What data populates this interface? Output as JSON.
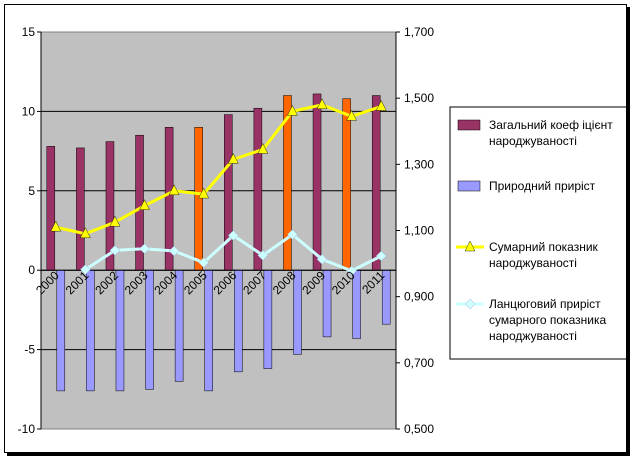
{
  "chart_data": {
    "type": "bar",
    "x": [
      "2000",
      "2001",
      "2002",
      "2003",
      "2004",
      "2005",
      "2006",
      "2007",
      "2008",
      "2009",
      "2010",
      "2011"
    ],
    "left_axis": {
      "ylim": [
        -10,
        15
      ],
      "ticks": [
        "15",
        "10",
        "5",
        "0",
        "-5",
        "-10"
      ]
    },
    "right_axis": {
      "ylim": [
        0.5,
        1.7
      ],
      "ticks": [
        "1,700",
        "1,500",
        "1,300",
        "1,100",
        "0,900",
        "0,700",
        "0,500"
      ]
    },
    "grid": true,
    "legend_position": "right",
    "series": [
      {
        "name": "Загальний коеф іцієнт народжуваності",
        "type": "bar",
        "axis": "left",
        "color": "#993366",
        "highlight_color": "#FF6600",
        "highlight_years": [
          "2005",
          "2008",
          "2010"
        ],
        "values": [
          7.8,
          7.7,
          8.1,
          8.5,
          9.0,
          9.0,
          9.8,
          10.2,
          11.0,
          11.1,
          10.8,
          11.0
        ]
      },
      {
        "name": "Природний приріст",
        "type": "bar",
        "axis": "left",
        "color": "#9999FF",
        "values": [
          -7.6,
          -7.6,
          -7.6,
          -7.5,
          -7.0,
          -7.6,
          -6.4,
          -6.2,
          -5.3,
          -4.2,
          -4.3,
          -3.4
        ]
      },
      {
        "name": "Сумарний показник народжуваності",
        "type": "line",
        "axis": "right",
        "color": "#FFFF00",
        "values": [
          1.11,
          1.09,
          1.125,
          1.175,
          1.22,
          1.21,
          1.315,
          1.345,
          1.46,
          1.48,
          1.445,
          1.475
        ]
      },
      {
        "name": "Ланцюговий приріст сумарного показника народжуваності",
        "type": "line",
        "axis": "right",
        "color": "#CCFFFF",
        "values": [
          null,
          0.982,
          1.04,
          1.045,
          1.038,
          1.003,
          1.085,
          1.025,
          1.088,
          1.013,
          0.978,
          1.023
        ]
      }
    ]
  }
}
